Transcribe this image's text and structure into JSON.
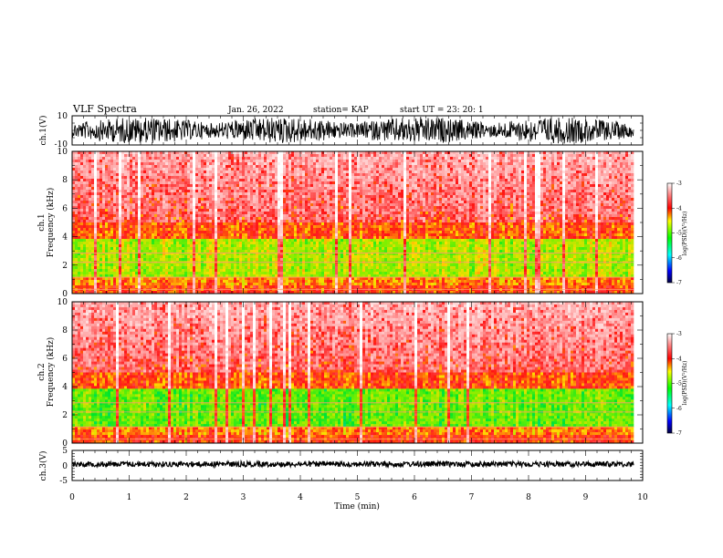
{
  "header": {
    "title": "VLF Spectra",
    "date": "Jan. 26, 2022",
    "station": "station= KAP",
    "start": "start  UT  =   23: 20: 1"
  },
  "chart_data": [
    {
      "type": "line",
      "name": "ch1-waveform",
      "ylabel": "ch.1(V)",
      "ylim": [
        -10,
        10
      ],
      "yticks": [
        "10",
        "-10"
      ],
      "xlim": [
        0,
        10
      ]
    },
    {
      "type": "heatmap",
      "name": "ch1-spectrogram",
      "ylabel_top": "ch.1",
      "ylabel": "Frequency  (kHz)",
      "ylim": [
        0,
        10
      ],
      "yticks": [
        "0",
        "2",
        "4",
        "6",
        "8",
        "10"
      ],
      "xlim": [
        0,
        10
      ],
      "colorbar": {
        "label": "log(PSD)(V²/Hz)",
        "range": [
          -7,
          -3
        ],
        "ticks": [
          "-3",
          "-4",
          "-5",
          "-6",
          "-7"
        ]
      }
    },
    {
      "type": "heatmap",
      "name": "ch2-spectrogram",
      "ylabel_top": "ch.2",
      "ylabel": "Frequency  (kHz)",
      "ylim": [
        0,
        10
      ],
      "yticks": [
        "0",
        "2",
        "4",
        "6",
        "8",
        "10"
      ],
      "xlim": [
        0,
        10
      ],
      "colorbar": {
        "label": "log(PSD)(V²/Hz)",
        "range": [
          -7,
          -3
        ],
        "ticks": [
          "-3",
          "-4",
          "-5",
          "-6",
          "-7"
        ]
      }
    },
    {
      "type": "line",
      "name": "ch3-waveform",
      "ylabel": "ch.3(V)",
      "ylim": [
        -5,
        5
      ],
      "yticks": [
        "5",
        "0",
        "-5"
      ],
      "xlim": [
        0,
        10
      ],
      "xlabel": "Time  (min)",
      "xticks": [
        "0",
        "1",
        "2",
        "3",
        "4",
        "5",
        "6",
        "7",
        "8",
        "9",
        "10"
      ]
    }
  ],
  "colors": {
    "high": "#ff0000",
    "mid": "#00ee00",
    "low": "#0000cc",
    "axis": "#000000"
  }
}
